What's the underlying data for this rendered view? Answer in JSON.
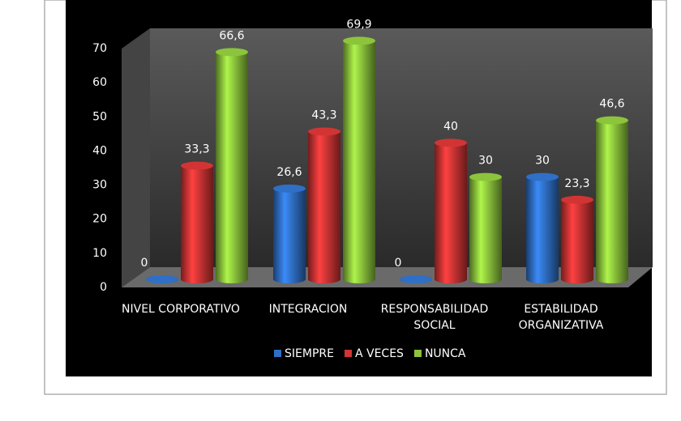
{
  "chart_data": {
    "type": "bar",
    "categories": [
      "NIVEL CORPORATIVO",
      "INTEGRACION",
      "RESPONSABILIDAD SOCIAL",
      "ESTABILIDAD ORGANIZATIVA"
    ],
    "series": [
      {
        "name": "SIEMPRE",
        "color": "#2f6fc6",
        "values": [
          0,
          26.6,
          0,
          30
        ],
        "value_labels": [
          "0",
          "26,6",
          "0",
          "30"
        ]
      },
      {
        "name": "A VECES",
        "color": "#d23434",
        "values": [
          33.3,
          43.3,
          40,
          23.3
        ],
        "value_labels": [
          "33,3",
          "43,3",
          "40",
          "23,3"
        ]
      },
      {
        "name": "NUNCA",
        "color": "#8cc43c",
        "values": [
          66.6,
          69.9,
          30,
          46.6
        ],
        "value_labels": [
          "66,6",
          "69,9",
          "30",
          "46,6"
        ]
      }
    ],
    "ylim": [
      0,
      70
    ],
    "yticks": [
      0,
      10,
      20,
      30,
      40,
      50,
      60,
      70
    ]
  }
}
